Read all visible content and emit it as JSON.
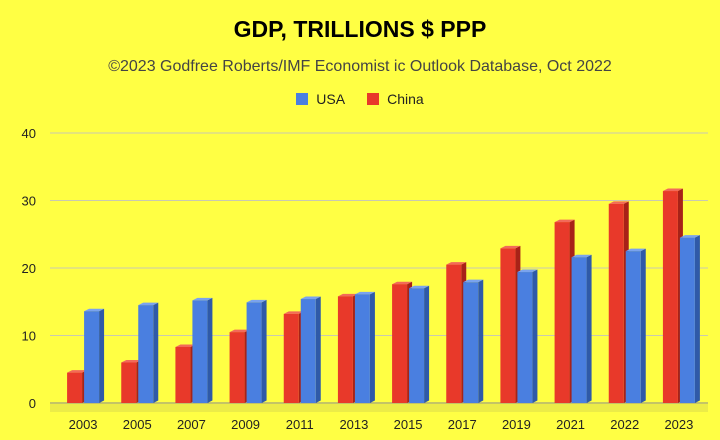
{
  "chart_data": {
    "type": "bar",
    "title": "GDP, TRILLIONS $ PPP",
    "subtitle": "©2023 Godfree Roberts/IMF Economist ic Outlook Database, Oct 2022",
    "xlabel": "",
    "ylabel": "",
    "ylim": [
      0,
      40
    ],
    "yticks": [
      "0",
      "10",
      "20",
      "30",
      "40"
    ],
    "grid": true,
    "legend_position": "top",
    "categories": [
      "2003",
      "2005",
      "2007",
      "2009",
      "2011",
      "2013",
      "2015",
      "2017",
      "2019",
      "2021",
      "2022",
      "2023"
    ],
    "series": [
      {
        "name": "China",
        "color": "#e8392a",
        "values": [
          4.5,
          6.0,
          8.3,
          10.5,
          13.2,
          15.8,
          17.6,
          20.5,
          22.9,
          26.8,
          29.5,
          31.4
        ]
      },
      {
        "name": "USA",
        "color": "#4a7fe0",
        "values": [
          13.6,
          14.5,
          15.2,
          14.9,
          15.4,
          16.1,
          17.0,
          17.9,
          19.4,
          21.6,
          22.5,
          24.5
        ]
      }
    ]
  },
  "legend": [
    {
      "label": "USA",
      "color": "#4a7fe0"
    },
    {
      "label": "China",
      "color": "#e8392a"
    }
  ]
}
